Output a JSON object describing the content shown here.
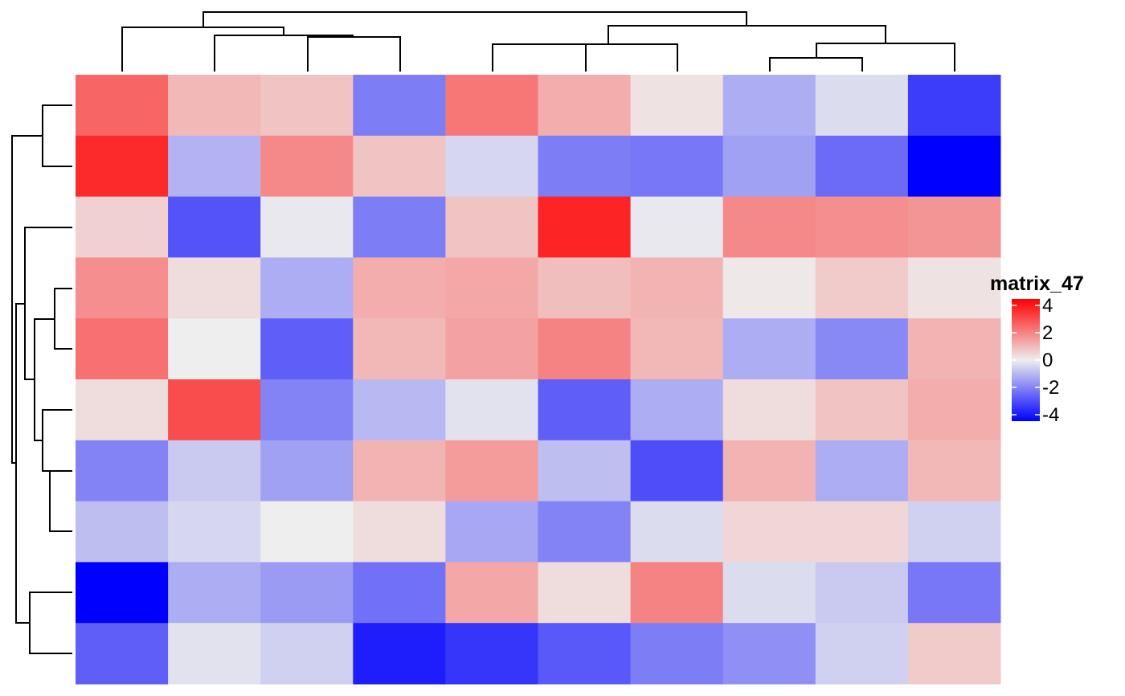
{
  "chart_data": {
    "type": "heatmap",
    "legend": {
      "title": "matrix_47",
      "ticks": [
        4,
        2,
        0,
        -2,
        -4
      ],
      "tick_labels": [
        "4",
        "2",
        "0",
        "-2",
        "-4"
      ],
      "range": [
        -4,
        4
      ],
      "colors": {
        "low": "#0000FF",
        "mid": "#EEEEEE",
        "high": "#FF0000"
      },
      "placement": "right"
    },
    "rows": 10,
    "cols": 10,
    "values": [
      [
        2.3,
        0.9,
        0.7,
        -1.9,
        2.0,
        1.1,
        0.2,
        -1.1,
        -0.3,
        -3.0
      ],
      [
        3.3,
        -1.0,
        1.7,
        0.7,
        -0.4,
        -1.9,
        -2.0,
        -1.3,
        -2.2,
        -4.0
      ],
      [
        0.5,
        -2.6,
        -0.1,
        -1.9,
        0.7,
        3.4,
        -0.1,
        1.7,
        1.6,
        1.5
      ],
      [
        1.6,
        0.3,
        -1.1,
        1.1,
        1.2,
        0.8,
        1.0,
        0.1,
        0.6,
        0.2
      ],
      [
        2.1,
        0.0,
        -2.4,
        0.9,
        1.3,
        1.8,
        0.9,
        -1.1,
        -1.7,
        1.0
      ],
      [
        0.3,
        2.7,
        -1.8,
        -0.9,
        -0.2,
        -2.4,
        -1.1,
        0.3,
        0.7,
        1.1
      ],
      [
        -1.8,
        -0.6,
        -1.3,
        1.0,
        1.4,
        -0.8,
        -2.7,
        1.0,
        -1.1,
        0.9
      ],
      [
        -0.8,
        -0.4,
        0.0,
        0.3,
        -1.2,
        -1.8,
        -0.3,
        0.4,
        0.4,
        -0.5
      ],
      [
        -4.0,
        -1.1,
        -1.4,
        -2.1,
        1.2,
        0.3,
        1.8,
        -0.3,
        -0.6,
        -2.0
      ],
      [
        -2.4,
        -0.2,
        -0.5,
        -3.5,
        -3.1,
        -2.5,
        -1.9,
        -1.6,
        -0.5,
        0.6
      ]
    ]
  }
}
